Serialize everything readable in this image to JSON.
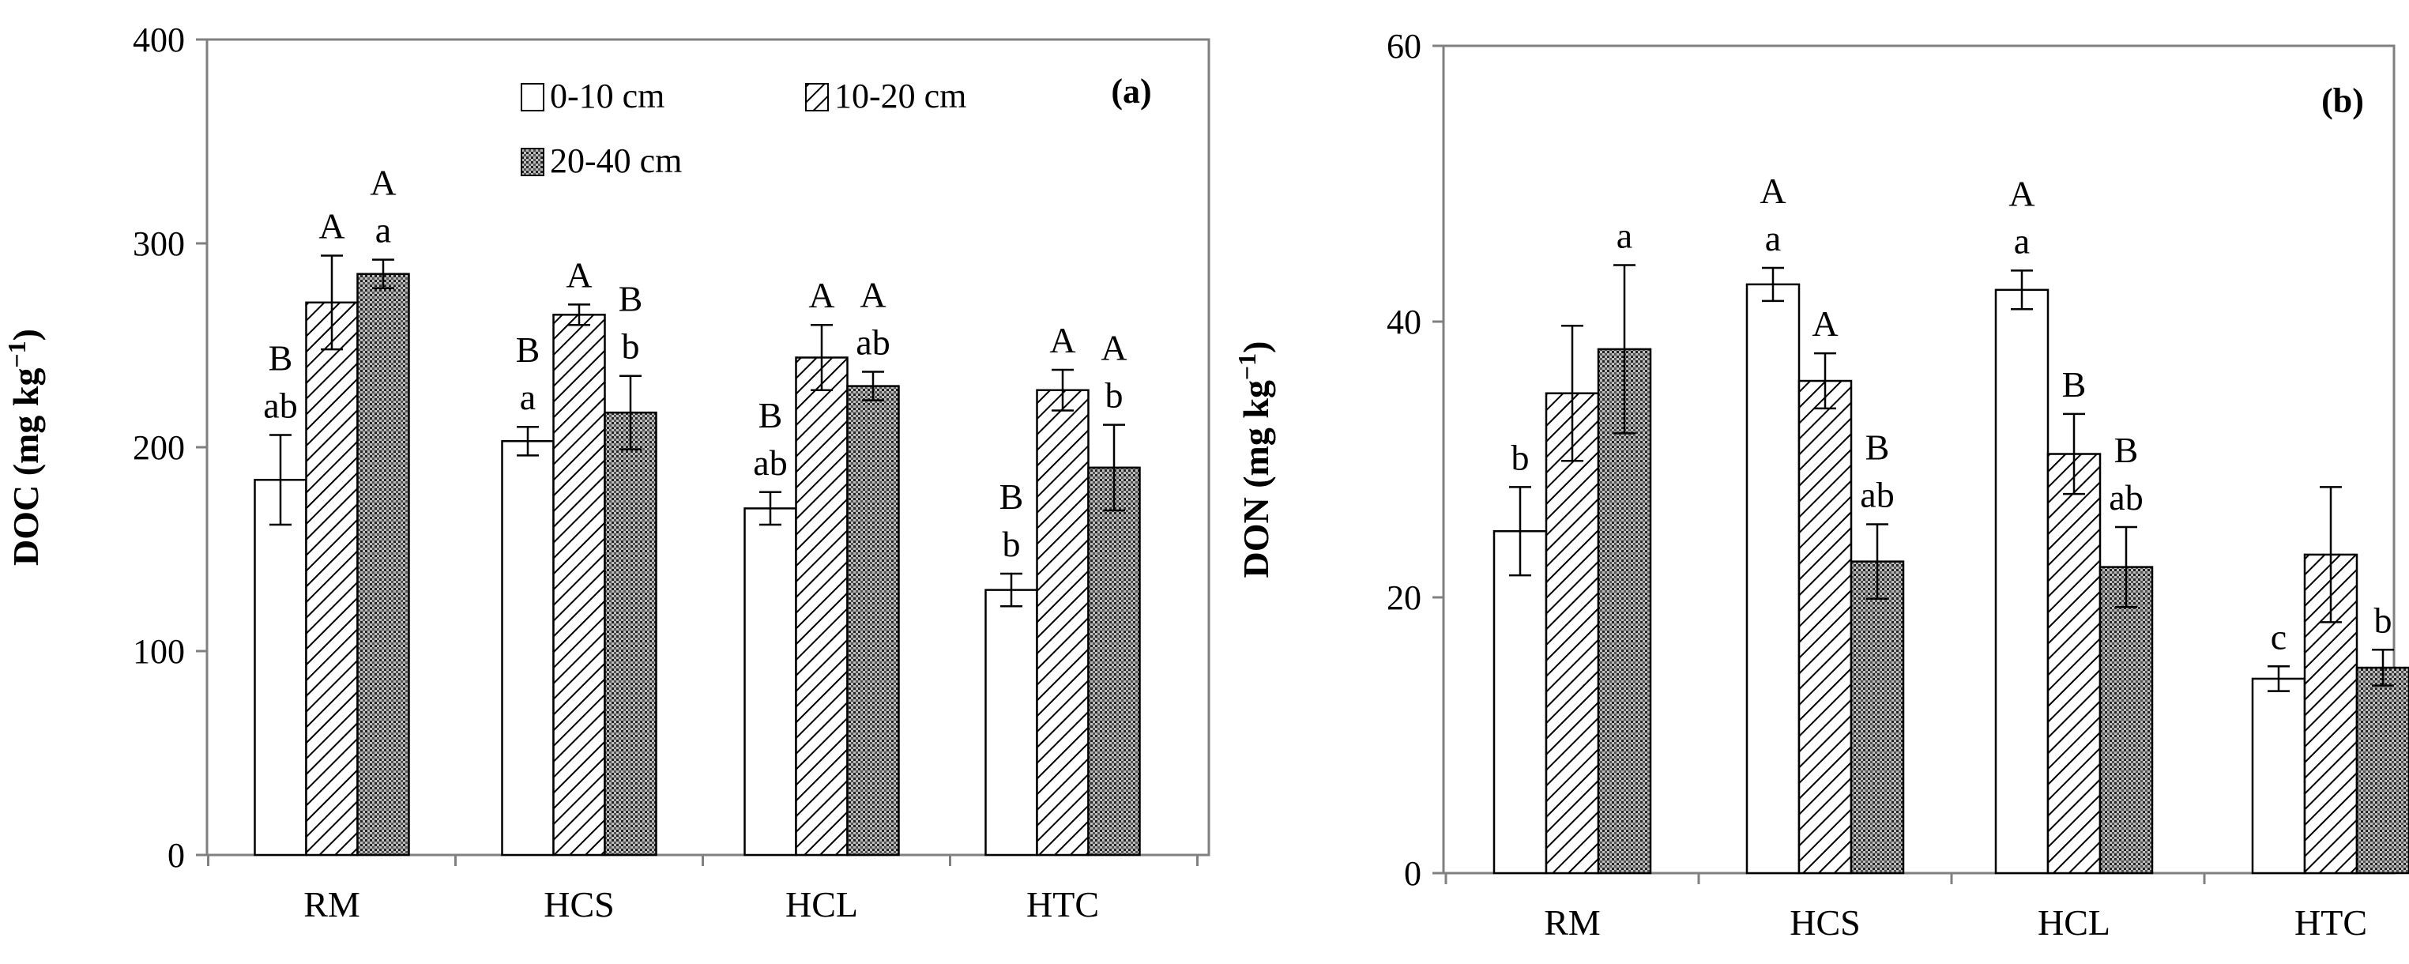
{
  "colors": {
    "axis": "#808080",
    "bar_stroke": "#000000",
    "background": "#ffffff",
    "dense": "#9a9a9a"
  },
  "chart_data": [
    {
      "type": "bar",
      "panel_label": "(a)",
      "ylabel": "DOC (mg kg",
      "ylabel_sup": "−1",
      "ylabel_close": ")",
      "ylim": [
        0,
        400
      ],
      "yticks": [
        0,
        100,
        200,
        300,
        400
      ],
      "ytick_labels": [
        "0",
        "100",
        "200",
        "300",
        "400"
      ],
      "categories": [
        "RM",
        "HCS",
        "HCL",
        "HTC"
      ],
      "series": [
        {
          "name": "0-10 cm",
          "pattern": "open",
          "values": [
            184,
            203,
            170,
            130
          ],
          "errors": [
            22,
            7,
            8,
            8
          ],
          "annotations": [
            [
              "B",
              "ab"
            ],
            [
              "B",
              "a"
            ],
            [
              "B",
              "ab"
            ],
            [
              "B",
              "b"
            ]
          ]
        },
        {
          "name": "10-20 cm",
          "pattern": "hatched",
          "values": [
            271,
            265,
            244,
            228
          ],
          "errors": [
            23,
            5,
            16,
            10
          ],
          "annotations": [
            [
              "A",
              ""
            ],
            [
              "A",
              ""
            ],
            [
              "A",
              ""
            ],
            [
              "A",
              ""
            ]
          ]
        },
        {
          "name": "20-40 cm",
          "pattern": "dense",
          "values": [
            285,
            217,
            230,
            190
          ],
          "errors": [
            7,
            18,
            7,
            21
          ],
          "annotations": [
            [
              "A",
              "a"
            ],
            [
              "B",
              "b"
            ],
            [
              "A",
              "ab"
            ],
            [
              "A",
              "b"
            ]
          ]
        }
      ],
      "legend": {
        "placement": "top-center",
        "entries": [
          "0-10 cm",
          "10-20 cm",
          "20-40 cm"
        ]
      }
    },
    {
      "type": "bar",
      "panel_label": "(b)",
      "ylabel": "DON (mg kg",
      "ylabel_sup": "−1",
      "ylabel_close": ")",
      "ylim": [
        0,
        60
      ],
      "yticks": [
        0,
        20,
        40,
        60
      ],
      "ytick_labels": [
        "0",
        "20",
        "40",
        "60"
      ],
      "categories": [
        "RM",
        "HCS",
        "HCL",
        "HTC"
      ],
      "series": [
        {
          "name": "0-10 cm",
          "pattern": "open",
          "values": [
            24.8,
            42.7,
            42.3,
            14.1
          ],
          "errors": [
            3.2,
            1.2,
            1.4,
            0.9
          ],
          "annotations": [
            [
              "",
              "b"
            ],
            [
              "A",
              "a"
            ],
            [
              "A",
              "a"
            ],
            [
              "",
              "c"
            ]
          ]
        },
        {
          "name": "10-20 cm",
          "pattern": "hatched",
          "values": [
            34.8,
            35.7,
            30.4,
            23.1
          ],
          "errors": [
            4.9,
            2.0,
            2.9,
            4.9
          ],
          "annotations": [
            [
              "",
              ""
            ],
            [
              "A",
              ""
            ],
            [
              "B",
              ""
            ],
            [
              "",
              ""
            ]
          ]
        },
        {
          "name": "20-40 cm",
          "pattern": "dense",
          "values": [
            38.0,
            22.6,
            22.2,
            14.9
          ],
          "errors": [
            6.1,
            2.7,
            2.9,
            1.3
          ],
          "annotations": [
            [
              "",
              "a"
            ],
            [
              "B",
              "ab"
            ],
            [
              "B",
              "ab"
            ],
            [
              "",
              "b"
            ]
          ]
        }
      ]
    }
  ]
}
